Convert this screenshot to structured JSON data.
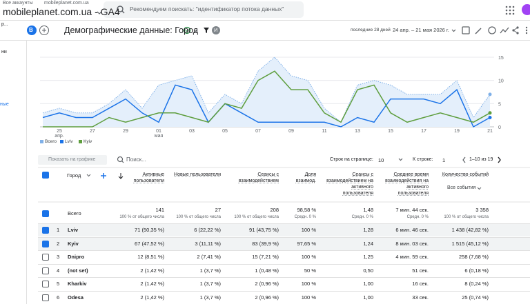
{
  "header": {
    "breadcrumb": [
      "Все аккаунты",
      "mobileplanet.com.ua"
    ],
    "property": "mobileplanet.com.ua - GA4",
    "search": "Рекомендуем поискать: \"идентификатор потока данных\""
  },
  "sidebar": [
    "р...",
    "ни",
    "ные"
  ],
  "toolbar": {
    "badge": "B",
    "title": "Демографические данные: Город",
    "avatar": "И",
    "date_label": "последние 28 дней",
    "date_range": "24 апр. – 21 мая 2026 г."
  },
  "chart_data": {
    "type": "line",
    "categories": [
      null,
      "25\nапр.",
      null,
      "27",
      null,
      "29",
      null,
      "01\nмая",
      null,
      "03",
      null,
      "05",
      null,
      "07",
      null,
      "09",
      null,
      "11",
      null,
      "13",
      null,
      "15",
      null,
      "17",
      null,
      "19",
      null,
      "21"
    ],
    "series": [
      {
        "name": "Всего",
        "color": "#7fb0e8",
        "area_color": "#e4effb",
        "values": [
          3,
          4,
          3,
          3,
          5,
          8,
          4,
          9,
          10,
          11,
          3,
          7,
          5,
          12,
          15,
          11,
          10,
          4,
          1,
          9,
          10,
          9,
          7,
          7,
          7,
          10,
          2,
          7
        ]
      },
      {
        "name": "Lviv",
        "color": "#1a73e8",
        "values": [
          2,
          3,
          2,
          2,
          4,
          6,
          3,
          1,
          9,
          8,
          1,
          5,
          3,
          1,
          1,
          1,
          1,
          1,
          0,
          2,
          1,
          6,
          6,
          6,
          5,
          8,
          0,
          2
        ]
      },
      {
        "name": "Kyiv",
        "color": "#5e9e3e",
        "values": [
          0,
          0,
          0,
          0,
          2,
          1,
          2,
          3,
          3,
          2,
          1,
          5,
          4,
          10,
          12,
          8,
          8,
          3,
          1,
          8,
          9,
          3,
          1,
          2,
          3,
          2,
          1,
          3
        ]
      }
    ],
    "ylim": [
      0,
      15
    ],
    "yticks": [
      0,
      5,
      10,
      15
    ],
    "grid": true,
    "legend": "bottom-left"
  },
  "table": {
    "show_on_chart": "Показать на графике",
    "search": "Поиск...",
    "rows_per_page_label": "Строк на странице:",
    "rows_per_page": "10",
    "goto_label": "К строке:",
    "goto": "1",
    "pagination": "1–10 из 19",
    "dimension": "Город",
    "columns": [
      "Активные пользователи",
      "Новые пользователи",
      "Сеансы с взаимодействием",
      "Доля взаимод.",
      "Сеансы с взаимодействием на активного пользователя",
      "Среднее время взаимодействия на активного пользователя",
      "Количество событий"
    ],
    "events_filter": "Все события",
    "totals_label": "Всего",
    "totals": [
      {
        "value": "141",
        "note": "100 % от общего числа"
      },
      {
        "value": "27",
        "note": "100 % от общего числа"
      },
      {
        "value": "208",
        "note": "100 % от общего числа"
      },
      {
        "value": "98,58 %",
        "note": "Средн. 0 %"
      },
      {
        "value": "1,48",
        "note": "Средн. 0 %"
      },
      {
        "value": "7 мин. 44 сек.",
        "note": "Средн. 0 %"
      },
      {
        "value": "3 358",
        "note": "100 % от общего числа"
      }
    ],
    "rows": [
      {
        "index": "1",
        "name": "Lviv",
        "checked": true,
        "cells": [
          "71 (50,35 %)",
          "6 (22,22 %)",
          "91 (43,75 %)",
          "100 %",
          "1,28",
          "6 мин. 46 сек.",
          "1 438 (42,82 %)"
        ]
      },
      {
        "index": "2",
        "name": "Kyiv",
        "checked": true,
        "cells": [
          "67 (47,52 %)",
          "3 (11,11 %)",
          "83 (39,9 %)",
          "97,65 %",
          "1,24",
          "8 мин. 03 сек.",
          "1 515 (45,12 %)"
        ]
      },
      {
        "index": "3",
        "name": "Dnipro",
        "checked": false,
        "cells": [
          "12 (8,51 %)",
          "2 (7,41 %)",
          "15 (7,21 %)",
          "100 %",
          "1,25",
          "4 мин. 59 сек.",
          "258 (7,68 %)"
        ]
      },
      {
        "index": "4",
        "name": "(not set)",
        "checked": false,
        "cells": [
          "2 (1,42 %)",
          "1 (3,7 %)",
          "1 (0,48 %)",
          "50 %",
          "0,50",
          "51 сек.",
          "6 (0,18 %)"
        ]
      },
      {
        "index": "5",
        "name": "Kharkiv",
        "checked": false,
        "cells": [
          "2 (1,42 %)",
          "1 (3,7 %)",
          "2 (0,96 %)",
          "100 %",
          "1,00",
          "16 сек.",
          "8 (0,24 %)"
        ]
      },
      {
        "index": "6",
        "name": "Odesa",
        "checked": false,
        "cells": [
          "2 (1,42 %)",
          "1 (3,7 %)",
          "2 (0,96 %)",
          "100 %",
          "1,00",
          "33 сек.",
          "25 (0,74 %)"
        ]
      }
    ]
  }
}
